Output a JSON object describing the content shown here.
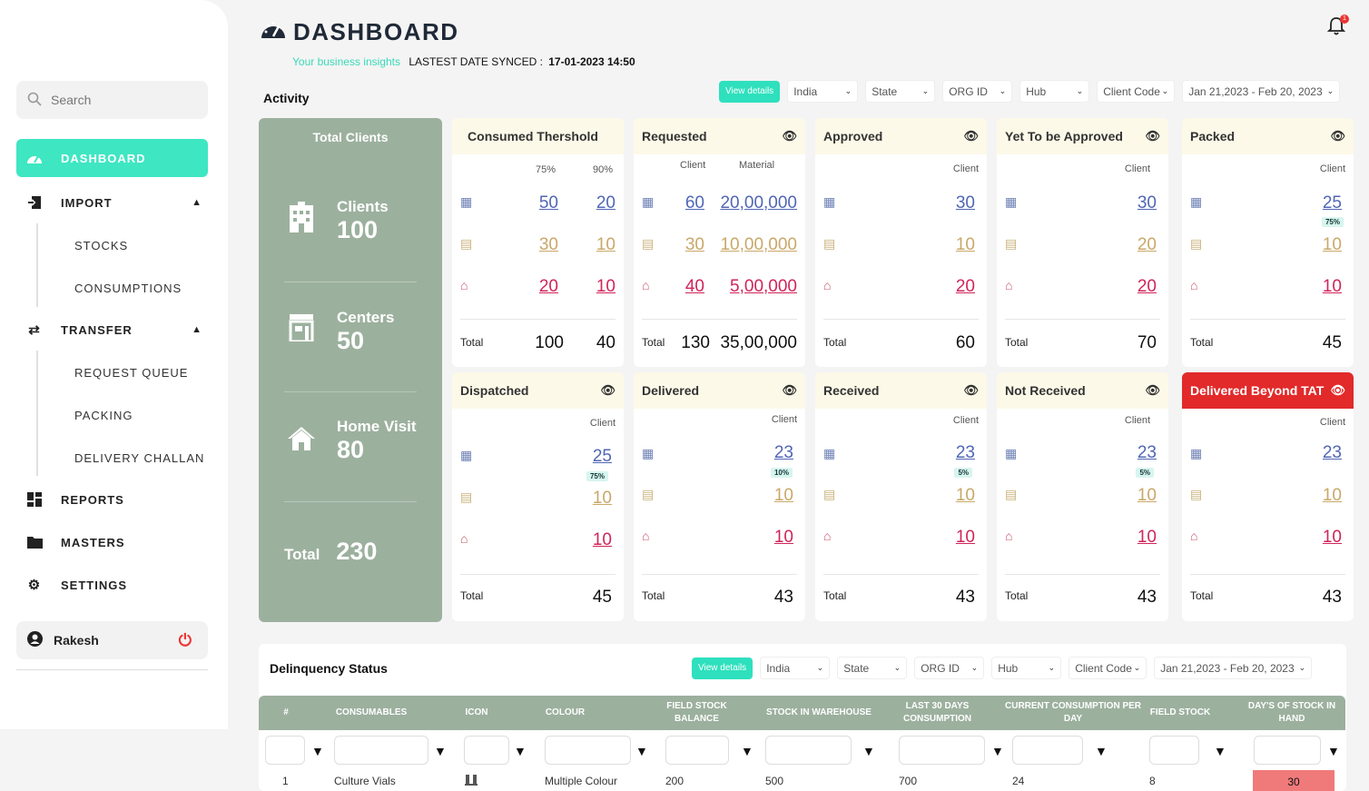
{
  "sidebar": {
    "search_placeholder": "Search",
    "dashboard": "DASHBOARD",
    "import": "IMPORT",
    "import_items": [
      "STOCKS",
      "CONSUMPTIONS"
    ],
    "transfer": "TRANSFER",
    "transfer_items": [
      "REQUEST QUEUE",
      "PACKING",
      "DELIVERY CHALLAN"
    ],
    "reports": "REPORTS",
    "masters": "MASTERS",
    "settings": "SETTINGS",
    "user": "Rakesh"
  },
  "header": {
    "title": "DASHBOARD",
    "tagline": "Your business insights",
    "sync_label": "LASTEST DATE SYNCED :",
    "sync_value": "17-01-2023  14:50",
    "notification_count": "1"
  },
  "activity": {
    "label": "Activity",
    "view_details": "View details",
    "filters": [
      "India",
      "State",
      "ORG ID",
      "Hub",
      "Client Code"
    ],
    "date_range": "Jan 21,2023 - Feb 20, 2023"
  },
  "total_clients": {
    "title": "Total Clients",
    "clients_label": "Clients",
    "clients_value": "100",
    "centers_label": "Centers",
    "centers_value": "50",
    "home_label": "Home Visit",
    "home_value": "80",
    "total_label": "Total",
    "total_value": "230"
  },
  "cards": {
    "consumed": {
      "title": "Consumed Thershold",
      "col1": "75%",
      "col2": "90%",
      "rows": [
        [
          "50",
          "20"
        ],
        [
          "30",
          "10"
        ],
        [
          "20",
          "10"
        ]
      ],
      "total_label": "Total",
      "totals": [
        "100",
        "40"
      ]
    },
    "requested": {
      "title": "Requested",
      "col1": "Client",
      "col2": "Material",
      "rows": [
        [
          "60",
          "20,00,000"
        ],
        [
          "30",
          "10,00,000"
        ],
        [
          "40",
          "5,00,000"
        ]
      ],
      "total_label": "Total",
      "totals": [
        "130",
        "35,00,000"
      ]
    },
    "approved": {
      "title": "Approved",
      "col": "Client",
      "rows": [
        "30",
        "10",
        "20"
      ],
      "total_label": "Total",
      "total": "60"
    },
    "yet": {
      "title": "Yet To be Approved",
      "col": "Client",
      "rows": [
        "30",
        "20",
        "20"
      ],
      "total_label": "Total",
      "total": "70"
    },
    "packed": {
      "title": "Packed",
      "col": "Client",
      "rows": [
        "25",
        "10",
        "10"
      ],
      "badge": "75%",
      "total_label": "Total",
      "total": "45"
    },
    "dispatched": {
      "title": "Dispatched",
      "col": "Client",
      "rows": [
        "25",
        "10",
        "10"
      ],
      "badge": "75%",
      "total_label": "Total",
      "total": "45"
    },
    "delivered": {
      "title": "Delivered",
      "col": "Client",
      "rows": [
        "23",
        "10",
        "10"
      ],
      "badge": "10%",
      "total_label": "Total",
      "total": "43"
    },
    "received": {
      "title": "Received",
      "col": "Client",
      "rows": [
        "23",
        "10",
        "10"
      ],
      "badge": "5%",
      "total_label": "Total",
      "total": "43"
    },
    "notreceived": {
      "title": "Not Received",
      "col": "Client",
      "rows": [
        "23",
        "10",
        "10"
      ],
      "badge": "5%",
      "total_label": "Total",
      "total": "43"
    },
    "beyond": {
      "title": "Delivered Beyond TAT",
      "col": "Client",
      "rows": [
        "23",
        "10",
        "10"
      ],
      "total_label": "Total",
      "total": "43"
    }
  },
  "delinquency": {
    "label": "Delinquency Status",
    "view_details": "View details",
    "filters": [
      "India",
      "State",
      "ORG ID",
      "Hub",
      "Client Code"
    ],
    "date_range": "Jan 21,2023 - Feb 20, 2023",
    "columns": [
      "#",
      "CONSUMABLES",
      "ICON",
      "COLOUR",
      "FIELD STOCK BALANCE",
      "STOCK IN WAREHOUSE",
      "LAST 30 DAYS CONSUMPTION",
      "CURRENT CONSUMPTION PER DAY",
      "FIELD STOCK",
      "DAY'S OF STOCK IN HAND"
    ],
    "row": [
      "1",
      "Culture Vials",
      "Multiple Colour",
      "200",
      "500",
      "700",
      "24",
      "8",
      "30"
    ]
  },
  "colors": {
    "accent": "#3ee6c2",
    "panel": "#9cb09e",
    "alert": "#e22a2a",
    "client_blue": "#5066b5",
    "center_gold": "#c9a868",
    "home_pink": "#d0245a"
  }
}
